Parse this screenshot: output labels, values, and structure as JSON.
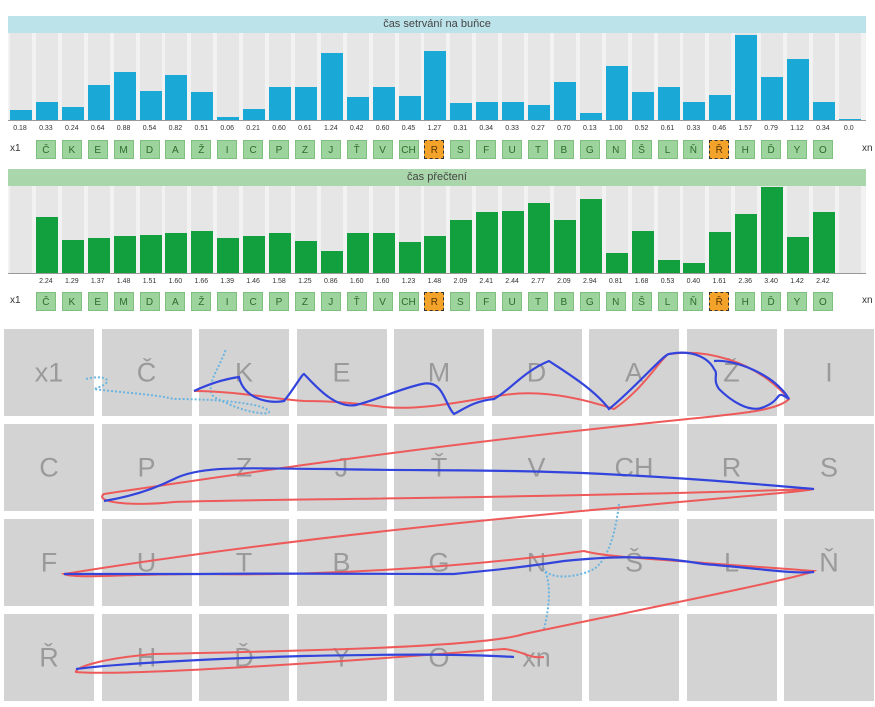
{
  "chart1": {
    "title": "čas setrvání na buňce",
    "bar_color": "#1aa8d6"
  },
  "chart2": {
    "title": "čas přečtení",
    "bar_color": "#12a03e"
  },
  "letters": {
    "start": "x1",
    "end": "xn",
    "items": [
      "Č",
      "K",
      "E",
      "M",
      "D",
      "A",
      "Ž",
      "I",
      "C",
      "P",
      "Z",
      "J",
      "Ť",
      "V",
      "CH",
      "R",
      "S",
      "F",
      "U",
      "T",
      "B",
      "G",
      "N",
      "Š",
      "L",
      "Ň",
      "Ř",
      "H",
      "Ď",
      "Y",
      "O"
    ],
    "selected": [
      "R",
      "Ř"
    ]
  },
  "chart_data": [
    {
      "type": "bar",
      "title": "čas setrvání na buňce",
      "categories": [
        "x1",
        "Č",
        "K",
        "E",
        "M",
        "D",
        "A",
        "Ž",
        "I",
        "C",
        "P",
        "Z",
        "J",
        "Ť",
        "V",
        "CH",
        "R",
        "S",
        "F",
        "U",
        "T",
        "B",
        "G",
        "N",
        "Š",
        "L",
        "Ň",
        "Ř",
        "H",
        "Ď",
        "Y",
        "O",
        "xn"
      ],
      "values": [
        0.18,
        0.33,
        0.24,
        0.64,
        0.88,
        0.54,
        0.82,
        0.51,
        0.06,
        0.21,
        0.6,
        0.61,
        1.24,
        0.42,
        0.6,
        0.45,
        1.27,
        0.31,
        0.34,
        0.33,
        0.27,
        0.7,
        0.13,
        1.0,
        0.52,
        0.61,
        0.33,
        0.46,
        1.57,
        0.79,
        1.12,
        0.34,
        0.0
      ],
      "labels": [
        "0.18",
        "0.33",
        "0.24",
        "0.64",
        "0.88",
        "0.54",
        "0.82",
        "0.51",
        "0.06",
        "0.21",
        "0.60",
        "0.61",
        "1.24",
        "0.42",
        "0.60",
        "0.45",
        "1.27",
        "0.31",
        "0.34",
        "0.33",
        "0.27",
        "0.70",
        "0.13",
        "1.00",
        "0.52",
        "0.61",
        "0.33",
        "0.46",
        "1.57",
        "0.79",
        "1.12",
        "0.34",
        "0.0"
      ]
    },
    {
      "type": "bar",
      "title": "čas přečtení",
      "categories": [
        "Č",
        "K",
        "E",
        "M",
        "D",
        "A",
        "Ž",
        "I",
        "C",
        "P",
        "Z",
        "J",
        "Ť",
        "V",
        "CH",
        "R",
        "S",
        "F",
        "U",
        "T",
        "B",
        "G",
        "N",
        "Š",
        "L",
        "Ň",
        "Ř",
        "H",
        "Ď",
        "Y",
        "O"
      ],
      "values": [
        2.24,
        1.29,
        1.37,
        1.48,
        1.51,
        1.6,
        1.66,
        1.39,
        1.46,
        1.58,
        1.25,
        0.86,
        1.6,
        1.6,
        1.23,
        1.48,
        2.09,
        2.41,
        2.44,
        2.77,
        2.09,
        2.94,
        0.81,
        1.68,
        0.53,
        0.4,
        1.61,
        2.36,
        3.4,
        1.42,
        2.42
      ],
      "labels": [
        "2.24",
        "1.29",
        "1.37",
        "1.48",
        "1.51",
        "1.60",
        "1.66",
        "1.39",
        "1.46",
        "1.58",
        "1.25",
        "0.86",
        "1.60",
        "1.60",
        "1.23",
        "1.48",
        "2.09",
        "2.41",
        "2.44",
        "2.77",
        "2.09",
        "2.94",
        "0.81",
        "1.68",
        "0.53",
        "0.40",
        "1.61",
        "2.36",
        "3.40",
        "1.42",
        "2.42"
      ]
    }
  ],
  "keyboard": {
    "rows": [
      [
        "x1",
        "Č",
        "K",
        "E",
        "M",
        "D",
        "A",
        "Ž",
        "I"
      ],
      [
        "C",
        "P",
        "Z",
        "J",
        "Ť",
        "V",
        "CH",
        "R",
        "S"
      ],
      [
        "F",
        "U",
        "T",
        "B",
        "G",
        "N",
        "Š",
        "L",
        "Ň"
      ],
      [
        "Ř",
        "H",
        "Ď",
        "Y",
        "O",
        "xn",
        "",
        "",
        ""
      ]
    ]
  },
  "trace_colors": {
    "blue": "#3344dd",
    "red": "#ee5a5a",
    "dotted": "#6ab4e0"
  }
}
